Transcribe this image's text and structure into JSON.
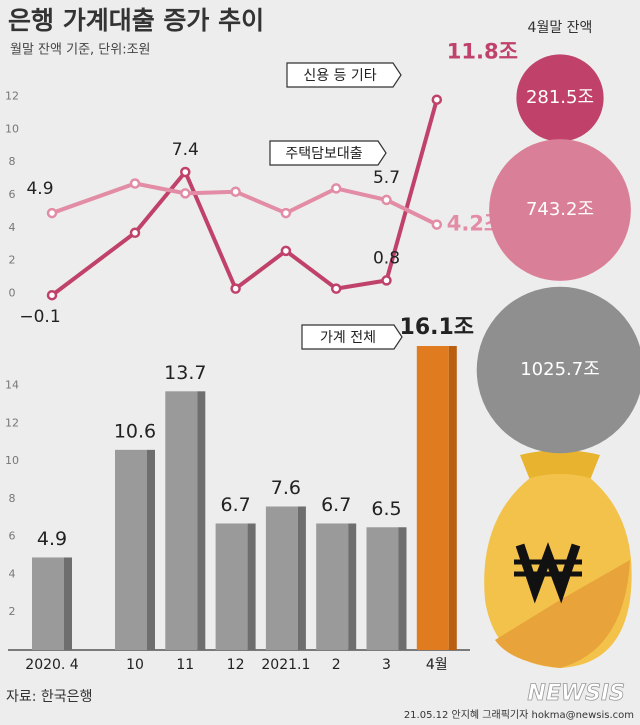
{
  "title": "은행 가계대출 증가 추이",
  "subtitle": "월말 잔액 기준, 단위:조원",
  "chart_data": [
    {
      "type": "line",
      "ylim": [
        -1,
        13
      ],
      "yticks": [
        0,
        2,
        4,
        6,
        8,
        10,
        12
      ],
      "series": [
        {
          "name": "신용 등 기타",
          "color": "#c0426b",
          "values": [
            -0.1,
            3.7,
            7.4,
            0.3,
            2.6,
            0.3,
            0.8,
            11.8
          ],
          "value_labels": [
            "−0.1",
            null,
            "7.4",
            null,
            null,
            null,
            "0.8",
            "11.8조"
          ]
        },
        {
          "name": "주택담보대출",
          "color": "#e28ca5",
          "values": [
            4.9,
            6.7,
            6.1,
            6.2,
            4.9,
            6.4,
            5.7,
            4.2
          ],
          "value_labels": [
            "4.9",
            null,
            null,
            null,
            null,
            null,
            "5.7",
            "4.2조"
          ]
        }
      ]
    },
    {
      "type": "bar",
      "ylim": [
        0,
        17
      ],
      "yticks": [
        2,
        4,
        6,
        8,
        10,
        12,
        14
      ],
      "categories": [
        "2020. 4",
        "10",
        "11",
        "12",
        "2021.1",
        "2",
        "3",
        "4월"
      ],
      "series": [
        {
          "name": "가계 전체",
          "colors": [
            "#9a9a9a",
            "#9a9a9a",
            "#9a9a9a",
            "#9a9a9a",
            "#9a9a9a",
            "#9a9a9a",
            "#9a9a9a",
            "#e07b1f"
          ],
          "values": [
            4.9,
            10.6,
            13.7,
            6.7,
            7.6,
            6.7,
            6.5,
            16.1
          ],
          "value_labels": [
            "4.9",
            "10.6",
            "13.7",
            "6.7",
            "7.6",
            "6.7",
            "6.5",
            "16.1조"
          ]
        }
      ]
    }
  ],
  "balances": {
    "title": "4월말 잔액",
    "values": [
      281.5,
      743.2,
      1025.7
    ],
    "value_labels": [
      "281.5조",
      "743.2조",
      "1025.7조"
    ],
    "colors": [
      "#c0426b",
      "#da7f98",
      "#8f8f8f"
    ]
  },
  "footer": {
    "source": "자료: 한국은행",
    "credit": "21.05.12 안지혜 그래픽기자  hokma@newsis.com",
    "logo": "NEWSIS"
  }
}
